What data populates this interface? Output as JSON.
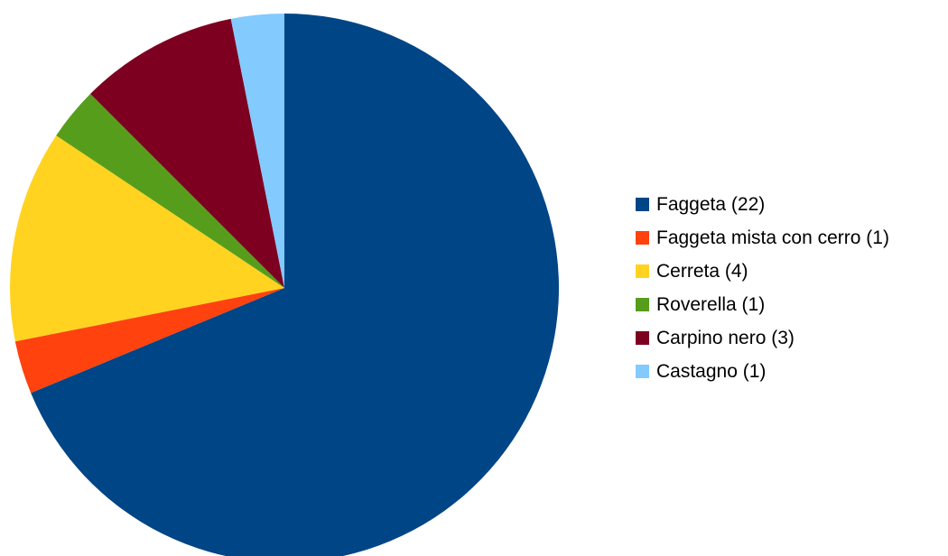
{
  "chart_data": {
    "type": "pie",
    "title": "",
    "start_angle_deg": 0,
    "direction": "clockwise",
    "legend_position": "right",
    "slices": [
      {
        "label": "Faggeta (22)",
        "value": 22,
        "color": "#004586"
      },
      {
        "label": "Faggeta mista con cerro (1)",
        "value": 1,
        "color": "#FF420E"
      },
      {
        "label": "Cerreta (4)",
        "value": 4,
        "color": "#FFD320"
      },
      {
        "label": "Roverella (1)",
        "value": 1,
        "color": "#579D1C"
      },
      {
        "label": "Carpino nero (3)",
        "value": 3,
        "color": "#7E0021"
      },
      {
        "label": "Castagno (1)",
        "value": 1,
        "color": "#83CAFF"
      }
    ]
  }
}
